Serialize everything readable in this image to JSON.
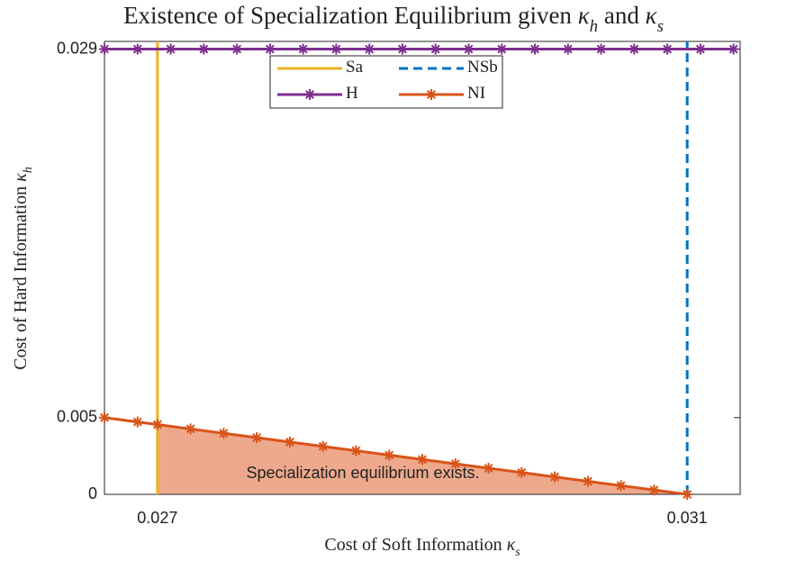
{
  "chart_data": {
    "type": "line",
    "title": "Existence of Specialization Equilibrium given κ_h and κ_s",
    "xlabel": "Cost of Soft Information κ_s",
    "ylabel": "Cost of Hard Information κ_h",
    "xlim": [
      0.0266,
      0.0314
    ],
    "ylim": [
      0,
      0.0295
    ],
    "xticks": [
      0.027,
      0.031
    ],
    "yticks": [
      0,
      0.005,
      0.029
    ],
    "legend": "north",
    "series": [
      {
        "name": "Sa",
        "color": "#EDB120",
        "style": "solid",
        "x": [
          0.027,
          0.027
        ],
        "values": [
          0,
          0.0295
        ]
      },
      {
        "name": "NSb",
        "color": "#0072BD",
        "style": "dashed",
        "x": [
          0.031,
          0.031
        ],
        "values": [
          0,
          0.0295
        ]
      },
      {
        "name": "H",
        "color": "#7E2F8E",
        "style": "solid",
        "marker": "*",
        "x": [
          0.0266,
          0.02685,
          0.0271,
          0.02735,
          0.0276,
          0.02785,
          0.0281,
          0.02835,
          0.0286,
          0.02885,
          0.0291,
          0.02935,
          0.0296,
          0.02985,
          0.0301,
          0.03035,
          0.0306,
          0.03085,
          0.0311,
          0.03135
        ],
        "values": [
          0.029,
          0.029,
          0.029,
          0.029,
          0.029,
          0.029,
          0.029,
          0.029,
          0.029,
          0.029,
          0.029,
          0.029,
          0.029,
          0.029,
          0.029,
          0.029,
          0.029,
          0.029,
          0.029,
          0.029
        ]
      },
      {
        "name": "NI",
        "color": "#D95319",
        "style": "solid",
        "marker": "*",
        "x": [
          0.0266,
          0.02685,
          0.027,
          0.02725,
          0.0275,
          0.02775,
          0.028,
          0.02825,
          0.0285,
          0.02875,
          0.029,
          0.02925,
          0.0295,
          0.02975,
          0.03,
          0.03025,
          0.0305,
          0.03075,
          0.031
        ],
        "values": [
          0.005,
          0.004716,
          0.004545,
          0.004261,
          0.003977,
          0.003693,
          0.003409,
          0.003125,
          0.002841,
          0.002557,
          0.002273,
          0.001989,
          0.001705,
          0.00142,
          0.001136,
          0.000852,
          0.000568,
          0.000284,
          0
        ]
      }
    ],
    "shade_color": "#EEA98C",
    "annotation": "Specialization equilibrium exists."
  }
}
